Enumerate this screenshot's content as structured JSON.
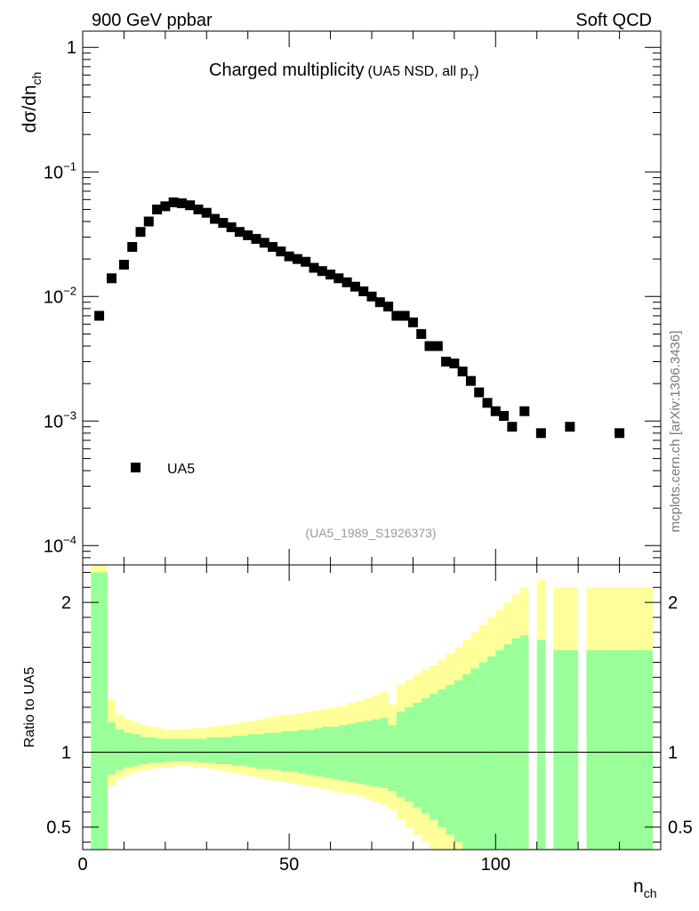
{
  "header": {
    "left": "900 GeV ppbar",
    "right": "Soft QCD"
  },
  "title": {
    "main": "Charged multiplicity",
    "sub": "(UA5 NSD, all p",
    "sub_sub": "T",
    "sub_close": ")"
  },
  "watermark": "mcplots.cern.ch [arXiv:1306.3436]",
  "analysis_id": "(UA5_1989_S1926373)",
  "colors": {
    "band_outer": "#ffff99",
    "band_inner": "#99ff99",
    "marker": "#000000",
    "axis": "#000000",
    "analysis_text": "#999999",
    "watermark_text": "#777777"
  },
  "chart_data": [
    {
      "type": "scatter",
      "panel": "main",
      "ylabel": {
        "base": "dσ/dn",
        "sub": "ch"
      },
      "yscale": "log",
      "xlim": [
        0,
        140
      ],
      "ylim": [
        7e-05,
        1.35
      ],
      "y_ticks": [
        {
          "value": 0.0001,
          "base": "10",
          "exp": "−4"
        },
        {
          "value": 0.001,
          "base": "10",
          "exp": "−3"
        },
        {
          "value": 0.01,
          "base": "10",
          "exp": "−2"
        },
        {
          "value": 0.1,
          "base": "10",
          "exp": "−1"
        },
        {
          "value": 1,
          "base": "1",
          "exp": ""
        }
      ],
      "legend": {
        "position": "lower-left",
        "entries": [
          {
            "label": "UA5",
            "marker": "square"
          }
        ]
      },
      "series": [
        {
          "name": "UA5",
          "x": [
            4,
            7,
            10,
            12,
            14,
            16,
            18,
            20,
            22,
            24,
            26,
            28,
            30,
            32,
            34,
            36,
            38,
            40,
            42,
            44,
            46,
            48,
            50,
            52,
            54,
            56,
            58,
            60,
            62,
            64,
            66,
            68,
            70,
            72,
            74,
            76,
            78,
            80,
            82,
            84,
            86,
            88,
            90,
            92,
            94,
            96,
            98,
            100,
            102,
            104,
            107,
            111,
            118,
            130
          ],
          "y": [
            0.007,
            0.014,
            0.018,
            0.025,
            0.033,
            0.04,
            0.05,
            0.053,
            0.057,
            0.056,
            0.054,
            0.05,
            0.047,
            0.042,
            0.039,
            0.036,
            0.033,
            0.031,
            0.029,
            0.027,
            0.025,
            0.023,
            0.021,
            0.02,
            0.019,
            0.017,
            0.016,
            0.015,
            0.014,
            0.013,
            0.012,
            0.011,
            0.01,
            0.009,
            0.0083,
            0.007,
            0.007,
            0.0062,
            0.005,
            0.004,
            0.004,
            0.003,
            0.0029,
            0.0025,
            0.0021,
            0.0017,
            0.0014,
            0.0012,
            0.0011,
            0.0009,
            0.0012,
            0.0008,
            0.0009,
            0.0008
          ]
        }
      ]
    },
    {
      "type": "area",
      "panel": "ratio",
      "ylabel": "Ratio to UA5",
      "xlabel": {
        "base": "n",
        "sub": "ch"
      },
      "xlim": [
        0,
        140
      ],
      "ylim": [
        0.35,
        2.25
      ],
      "x_ticks": [
        0,
        50,
        100
      ],
      "y_ticks": [
        0.5,
        1,
        2
      ],
      "reference_line": 1,
      "bands": {
        "edges": [
          2,
          6,
          8,
          10,
          12,
          14,
          16,
          18,
          20,
          22,
          24,
          26,
          28,
          30,
          32,
          34,
          36,
          38,
          40,
          42,
          44,
          46,
          48,
          50,
          52,
          54,
          56,
          58,
          60,
          62,
          64,
          66,
          68,
          70,
          72,
          74,
          76,
          78,
          80,
          82,
          84,
          86,
          88,
          90,
          92,
          94,
          96,
          98,
          100,
          102,
          104,
          106,
          108,
          110,
          112,
          114,
          116,
          118,
          120,
          122,
          124,
          126,
          128,
          130,
          132,
          134,
          136,
          138
        ],
        "outer_hi": [
          2.25,
          1.35,
          1.25,
          1.22,
          1.2,
          1.18,
          1.17,
          1.16,
          1.15,
          1.15,
          1.15,
          1.16,
          1.16,
          1.17,
          1.18,
          1.18,
          1.19,
          1.2,
          1.21,
          1.22,
          1.23,
          1.24,
          1.25,
          1.25,
          1.26,
          1.27,
          1.28,
          1.29,
          1.3,
          1.31,
          1.33,
          1.34,
          1.36,
          1.38,
          1.4,
          1.32,
          1.45,
          1.48,
          1.52,
          1.55,
          1.58,
          1.62,
          1.66,
          1.7,
          1.75,
          1.8,
          1.85,
          1.9,
          1.95,
          2.0,
          2.05,
          2.1,
          2.2,
          2.15,
          2.1,
          2.1,
          2.1,
          2.1,
          2.1,
          2.1,
          2.1,
          2.1,
          2.1,
          2.1,
          2.1,
          2.1,
          2.1
        ],
        "outer_lo": [
          0.35,
          0.78,
          0.82,
          0.85,
          0.87,
          0.88,
          0.89,
          0.9,
          0.9,
          0.91,
          0.91,
          0.9,
          0.9,
          0.89,
          0.88,
          0.87,
          0.86,
          0.85,
          0.84,
          0.83,
          0.82,
          0.81,
          0.8,
          0.79,
          0.78,
          0.77,
          0.76,
          0.75,
          0.74,
          0.73,
          0.72,
          0.71,
          0.69,
          0.67,
          0.65,
          0.62,
          0.55,
          0.5,
          0.45,
          0.4,
          0.35,
          0.35,
          0.35,
          0.35,
          0.35,
          0.35,
          0.35,
          0.35,
          0.35,
          0.35,
          0.35,
          0.35,
          0.35,
          0.35,
          0.35,
          0.35,
          0.35,
          0.35,
          0.35,
          0.35,
          0.35,
          0.35,
          0.35,
          0.35,
          0.35,
          0.35,
          0.35
        ],
        "inner_hi": [
          2.2,
          1.2,
          1.15,
          1.13,
          1.12,
          1.1,
          1.1,
          1.09,
          1.09,
          1.09,
          1.09,
          1.09,
          1.09,
          1.1,
          1.1,
          1.1,
          1.11,
          1.11,
          1.12,
          1.12,
          1.13,
          1.13,
          1.14,
          1.14,
          1.15,
          1.15,
          1.16,
          1.17,
          1.17,
          1.18,
          1.19,
          1.2,
          1.21,
          1.22,
          1.23,
          1.18,
          1.27,
          1.3,
          1.33,
          1.36,
          1.39,
          1.42,
          1.45,
          1.48,
          1.52,
          1.56,
          1.6,
          1.64,
          1.68,
          1.72,
          1.76,
          1.78,
          1.8,
          1.75,
          1.7,
          1.68,
          1.68,
          1.68,
          1.68,
          1.68,
          1.68,
          1.68,
          1.68,
          1.68,
          1.68,
          1.68,
          1.68
        ],
        "inner_lo": [
          0.35,
          0.85,
          0.88,
          0.9,
          0.91,
          0.92,
          0.93,
          0.93,
          0.94,
          0.94,
          0.94,
          0.94,
          0.93,
          0.93,
          0.92,
          0.92,
          0.91,
          0.91,
          0.9,
          0.89,
          0.89,
          0.88,
          0.87,
          0.87,
          0.86,
          0.85,
          0.84,
          0.83,
          0.82,
          0.81,
          0.8,
          0.79,
          0.78,
          0.77,
          0.76,
          0.74,
          0.7,
          0.67,
          0.63,
          0.59,
          0.55,
          0.5,
          0.45,
          0.4,
          0.35,
          0.35,
          0.35,
          0.35,
          0.35,
          0.35,
          0.35,
          0.35,
          0.35,
          0.35,
          0.35,
          0.35,
          0.35,
          0.35,
          0.35,
          0.35,
          0.35,
          0.35,
          0.35,
          0.35,
          0.35,
          0.35,
          0.35
        ],
        "gaps": [
          [
            108,
            110
          ],
          [
            112,
            114
          ],
          [
            120,
            122
          ]
        ]
      }
    }
  ]
}
